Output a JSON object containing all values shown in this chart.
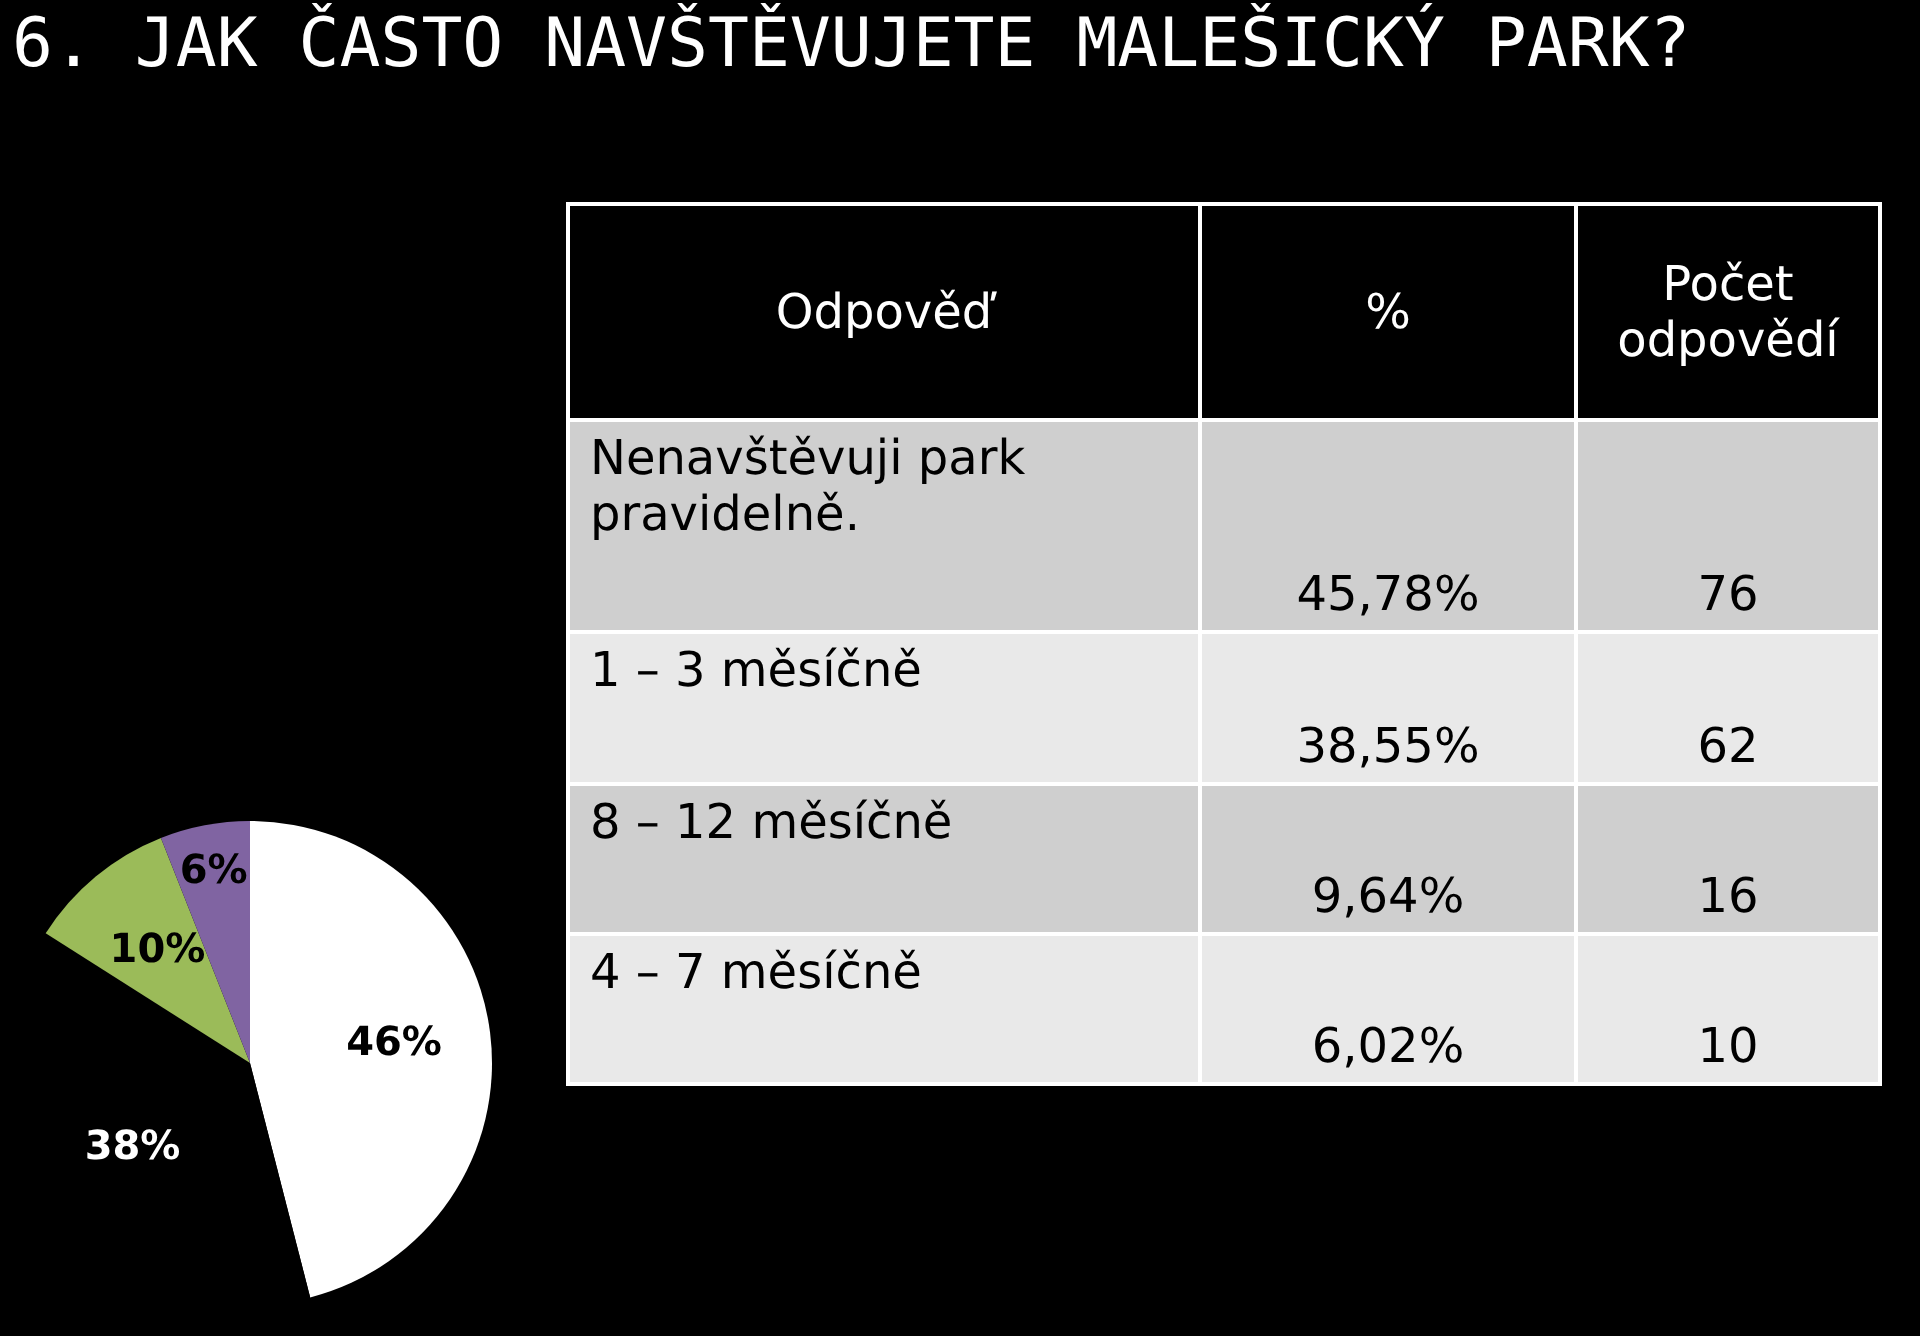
{
  "chart_data": [
    {
      "type": "pie",
      "title": "6. JAK ČASTO NAVŠTĚVUJETE MALEŠICKÝ PARK?",
      "categories": [
        null,
        null,
        null,
        null
      ],
      "values": [
        46,
        38,
        10,
        6
      ],
      "colors": [
        "#ffffff",
        "#000000",
        "#9bbb59",
        "#8064a2"
      ],
      "value_labels": [
        "46%",
        "38%",
        "10%",
        "6%"
      ]
    },
    {
      "type": "other",
      "annotations": [
        "Odpověď",
        "%",
        "Počet odpovědí",
        "Nenavštěvuji park pravidelně.",
        "45,78%",
        "76",
        "1 – 3 měsíčně",
        "38,55%",
        "62",
        "8 – 12 měsíčně",
        "9,64%",
        "16",
        "4 – 7 měsíčně",
        "6,02%",
        "10"
      ]
    }
  ]
}
